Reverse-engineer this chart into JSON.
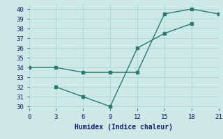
{
  "line1_x": [
    0,
    3,
    6,
    9,
    12,
    15,
    18,
    21
  ],
  "line1_y": [
    34,
    34,
    33.5,
    33.5,
    33.5,
    39.5,
    40,
    39.5
  ],
  "line2_x": [
    3,
    6,
    9,
    12,
    15,
    18
  ],
  "line2_y": [
    32,
    31,
    30,
    36,
    37.5,
    38.5
  ],
  "line_color": "#2a7a6f",
  "marker": "s",
  "marker_size": 2.5,
  "xlabel": "Humidex (Indice chaleur)",
  "xlim": [
    0,
    21
  ],
  "ylim": [
    29.8,
    40.5
  ],
  "xticks": [
    0,
    3,
    6,
    9,
    12,
    15,
    18,
    21
  ],
  "yticks": [
    30,
    31,
    32,
    33,
    34,
    35,
    36,
    37,
    38,
    39,
    40
  ],
  "bg_color": "#cce9e7",
  "grid_color": "#b0d8d5",
  "font_color": "#1a1a6a",
  "tick_fontsize": 6.5,
  "xlabel_fontsize": 7
}
